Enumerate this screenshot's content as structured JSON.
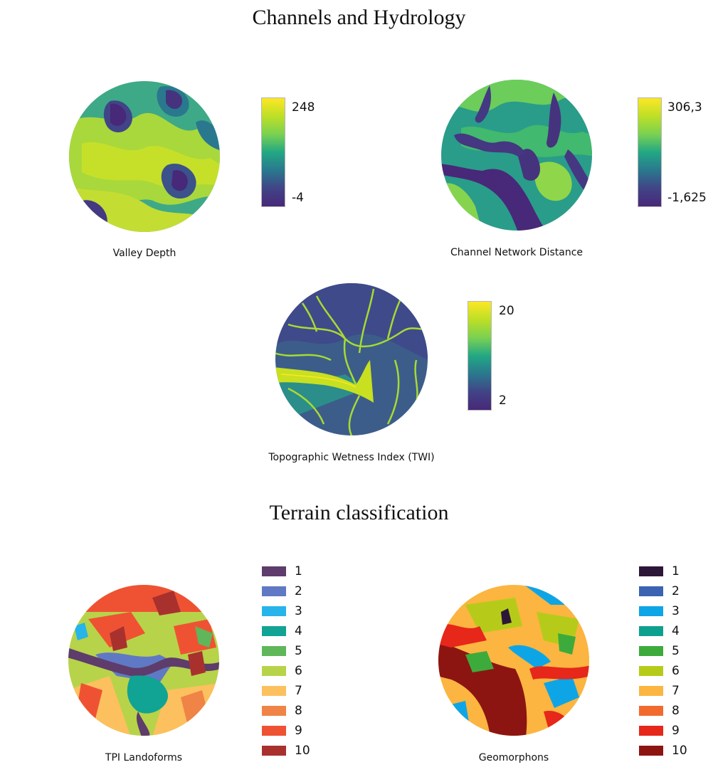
{
  "sections": {
    "hydrology_title": "Channels and Hydrology",
    "terrain_title": "Terrain classification"
  },
  "panels": {
    "valley_depth": {
      "caption": "Valley Depth",
      "max_label": "248",
      "min_label": "-4",
      "colors": [
        "#fde725",
        "#bddf26",
        "#7ad151",
        "#22a884",
        "#2a788e",
        "#414487",
        "#482878"
      ]
    },
    "channel_network_distance": {
      "caption": "Channel Network Distance",
      "max_label": "306,3",
      "min_label": "-1,625",
      "colors": [
        "#fde725",
        "#bddf26",
        "#7ad151",
        "#22a884",
        "#2a788e",
        "#414487",
        "#482878"
      ]
    },
    "twi": {
      "caption": "Topographic Wetness Index (TWI)",
      "max_label": "20",
      "min_label": "2",
      "colors": [
        "#fde725",
        "#bddf26",
        "#7ad151",
        "#22a884",
        "#2a788e",
        "#414487",
        "#482878"
      ]
    },
    "tpi_landforms": {
      "caption": "TPI Landoforms",
      "legend": [
        {
          "label": "1",
          "color": "#5e3c6b"
        },
        {
          "label": "2",
          "color": "#6079c4"
        },
        {
          "label": "3",
          "color": "#26b4ea"
        },
        {
          "label": "4",
          "color": "#11a393"
        },
        {
          "label": "5",
          "color": "#5fb75a"
        },
        {
          "label": "6",
          "color": "#b7d34a"
        },
        {
          "label": "7",
          "color": "#fcc05e"
        },
        {
          "label": "8",
          "color": "#f08346"
        },
        {
          "label": "9",
          "color": "#ef5233"
        },
        {
          "label": "10",
          "color": "#a8312e"
        }
      ]
    },
    "geomorphons": {
      "caption": "Geomorphons",
      "legend": [
        {
          "label": "1",
          "color": "#2d1738"
        },
        {
          "label": "2",
          "color": "#3b63b2"
        },
        {
          "label": "3",
          "color": "#0ea5e6"
        },
        {
          "label": "4",
          "color": "#0ea08f"
        },
        {
          "label": "5",
          "color": "#3dab3b"
        },
        {
          "label": "6",
          "color": "#b6cb19"
        },
        {
          "label": "7",
          "color": "#fbb540"
        },
        {
          "label": "8",
          "color": "#f26a2d"
        },
        {
          "label": "9",
          "color": "#e6271a"
        },
        {
          "label": "10",
          "color": "#8c1512"
        }
      ]
    }
  }
}
